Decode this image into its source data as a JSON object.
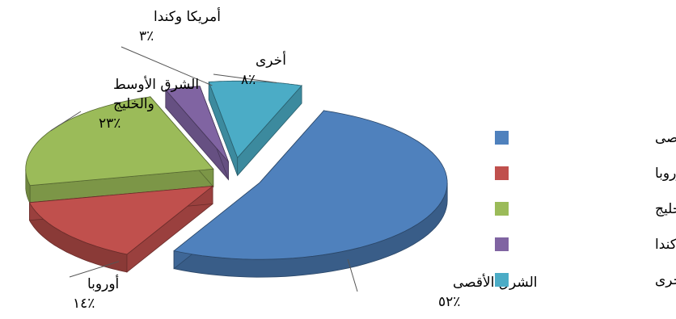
{
  "chart_data": {
    "type": "pie",
    "style": "exploded-3d",
    "categories": [
      "الشرق الأقصى",
      "أوروبا",
      "الشرق الأوسط والخليج",
      "أمريكا وكندا",
      "أخرى"
    ],
    "values": [
      52,
      14,
      23,
      3,
      8
    ],
    "value_labels": [
      "٪٥٢",
      "٪١٤",
      "٪٢٣",
      "٪٣",
      "٪٨"
    ],
    "label_lines": [
      [
        "الشرق الأقصى"
      ],
      [
        "أوروبا"
      ],
      [
        "الشرق الأوسط",
        "والخليج"
      ],
      [
        "أمريكا وكندا"
      ],
      [
        "أخرى"
      ]
    ],
    "colors": [
      "#4F81BD",
      "#C0504D",
      "#9BBB59",
      "#8064A2",
      "#4BACC6"
    ],
    "legend": {
      "position": "right",
      "entries": [
        "الشرق الأقصى",
        "أوروبا",
        "الشرق الأوسط والخليج",
        "أمريكا وكندا",
        "أخرى"
      ]
    }
  }
}
